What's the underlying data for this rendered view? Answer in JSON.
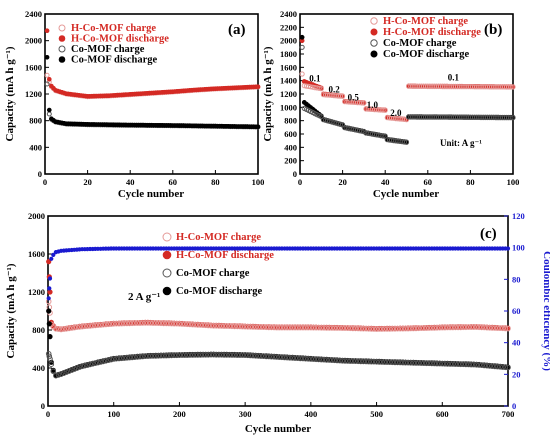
{
  "colors": {
    "h_charge": "#e59a98",
    "h_discharge": "#d42a24",
    "co_charge": "#555555",
    "co_discharge": "#000000",
    "efficiency": "#1a1ad0",
    "axis_right": "#1a1ad0"
  },
  "chart_data": [
    {
      "panel": "(a)",
      "type": "scatter",
      "xlabel": "Cycle number",
      "ylabel": "Capacity (mA h g⁻¹)",
      "xlim": [
        0,
        100
      ],
      "ylim": [
        0,
        2400
      ],
      "xticks": [
        "0",
        "20",
        "40",
        "60",
        "80",
        "100"
      ],
      "yticks": [
        "0",
        "400",
        "800",
        "1200",
        "1600",
        "2000",
        "2400"
      ],
      "legend": [
        "H-Co-MOF charge",
        "H-Co-MOF discharge",
        "Co-MOF charge",
        "Co-MOF discharge"
      ],
      "legend_position": "top-left",
      "series": [
        {
          "name": "H-Co-MOF charge",
          "x": [
            1,
            2,
            3,
            5,
            10,
            20,
            30,
            40,
            50,
            60,
            70,
            80,
            90,
            100
          ],
          "y": [
            1480,
            1380,
            1310,
            1250,
            1200,
            1160,
            1170,
            1190,
            1210,
            1230,
            1255,
            1275,
            1290,
            1305
          ]
        },
        {
          "name": "H-Co-MOF discharge",
          "x": [
            1,
            2,
            3,
            5,
            10,
            20,
            30,
            40,
            50,
            60,
            70,
            80,
            90,
            100
          ],
          "y": [
            2150,
            1420,
            1320,
            1255,
            1205,
            1165,
            1175,
            1195,
            1215,
            1235,
            1260,
            1280,
            1295,
            1310
          ]
        },
        {
          "name": "Co-MOF charge",
          "x": [
            1,
            2,
            3,
            5,
            10,
            20,
            40,
            60,
            80,
            100
          ],
          "y": [
            1350,
            900,
            820,
            780,
            750,
            740,
            730,
            725,
            715,
            705
          ]
        },
        {
          "name": "Co-MOF discharge",
          "x": [
            1,
            2,
            3,
            5,
            10,
            20,
            40,
            60,
            80,
            100
          ],
          "y": [
            1750,
            960,
            830,
            785,
            755,
            745,
            735,
            728,
            718,
            708
          ]
        }
      ]
    },
    {
      "panel": "(b)",
      "type": "scatter",
      "xlabel": "Cycle number",
      "ylabel": "Capacity (mA h g⁻¹)",
      "xlim": [
        0,
        100
      ],
      "ylim": [
        0,
        2400
      ],
      "xticks": [
        "0",
        "20",
        "40",
        "60",
        "80",
        "100"
      ],
      "yticks": [
        "0",
        "200",
        "400",
        "600",
        "800",
        "1000",
        "1200",
        "1400",
        "1600",
        "1800",
        "2000",
        "2200",
        "2400"
      ],
      "legend": [
        "H-Co-MOF charge",
        "H-Co-MOF discharge",
        "Co-MOF charge",
        "Co-MOF discharge"
      ],
      "legend_position": "top-right",
      "rate_labels": [
        "0.1",
        "0.2",
        "0.5",
        "1.0",
        "2.0",
        "0.1"
      ],
      "unit_label": "Unit: A g⁻¹",
      "rate_segments_cycles": [
        [
          1,
          10
        ],
        [
          11,
          20
        ],
        [
          21,
          30
        ],
        [
          31,
          40
        ],
        [
          41,
          50
        ],
        [
          51,
          100
        ]
      ],
      "series": [
        {
          "name": "H-Co-MOF discharge",
          "segments": [
            [
              1400,
              1290
            ],
            [
              1200,
              1170
            ],
            [
              1090,
              1070
            ],
            [
              980,
              960
            ],
            [
              850,
              820
            ],
            [
              1320,
              1310
            ]
          ],
          "first": 2000
        },
        {
          "name": "H-Co-MOF charge",
          "segments": [
            [
              1330,
              1280
            ],
            [
              1190,
              1165
            ],
            [
              1085,
              1065
            ],
            [
              975,
              955
            ],
            [
              845,
              815
            ],
            [
              1315,
              1305
            ]
          ],
          "first": 1500
        },
        {
          "name": "Co-MOF discharge",
          "segments": [
            [
              1100,
              870
            ],
            [
              820,
              740
            ],
            [
              700,
              640
            ],
            [
              620,
              570
            ],
            [
              520,
              480
            ],
            [
              860,
              850
            ]
          ],
          "first": 2050
        },
        {
          "name": "Co-MOF charge",
          "segments": [
            [
              1000,
              860
            ],
            [
              815,
              735
            ],
            [
              695,
              635
            ],
            [
              615,
              565
            ],
            [
              515,
              475
            ],
            [
              855,
              845
            ]
          ],
          "first": 1900
        }
      ]
    },
    {
      "panel": "(c)",
      "type": "scatter",
      "xlabel": "Cycle number",
      "ylabel": "Capacity (mA h g⁻¹)",
      "y2label": "Coulombic efficiency (%)",
      "xlim": [
        0,
        700
      ],
      "ylim": [
        0,
        2000
      ],
      "y2lim": [
        0,
        120
      ],
      "xticks": [
        "0",
        "100",
        "200",
        "300",
        "400",
        "500",
        "600",
        "700"
      ],
      "yticks": [
        "0",
        "400",
        "800",
        "1200",
        "1600",
        "2000"
      ],
      "y2ticks": [
        "0",
        "20",
        "40",
        "60",
        "80",
        "100",
        "120"
      ],
      "legend": [
        "H-Co-MOF charge",
        "H-Co-MOF discharge",
        "Co-MOF charge",
        "Co-MOF discharge"
      ],
      "legend_position": "center",
      "current_label": "2 A g⁻¹",
      "series": [
        {
          "name": "H-Co-MOF discharge",
          "x": [
            1,
            5,
            10,
            20,
            50,
            100,
            150,
            200,
            250,
            300,
            350,
            400,
            450,
            500,
            550,
            600,
            650,
            700
          ],
          "y": [
            1520,
            880,
            820,
            810,
            840,
            870,
            880,
            870,
            850,
            840,
            830,
            830,
            825,
            815,
            820,
            830,
            835,
            820
          ]
        },
        {
          "name": "H-Co-MOF charge",
          "x": [
            1,
            5,
            10,
            20,
            50,
            100,
            150,
            200,
            250,
            300,
            350,
            400,
            450,
            500,
            550,
            600,
            650,
            700
          ],
          "y": [
            1100,
            860,
            815,
            805,
            835,
            865,
            875,
            865,
            845,
            835,
            825,
            825,
            820,
            810,
            815,
            825,
            830,
            815
          ]
        },
        {
          "name": "Co-MOF discharge",
          "x": [
            1,
            5,
            10,
            20,
            50,
            100,
            150,
            200,
            250,
            300,
            350,
            400,
            450,
            500,
            550,
            600,
            650,
            700
          ],
          "y": [
            1000,
            460,
            320,
            340,
            420,
            500,
            530,
            540,
            545,
            540,
            520,
            500,
            480,
            470,
            460,
            450,
            440,
            410
          ]
        },
        {
          "name": "Co-MOF charge",
          "x": [
            1,
            5,
            10,
            20,
            50,
            100,
            150,
            200,
            250,
            300,
            350,
            400,
            450,
            500,
            550,
            600,
            650,
            700
          ],
          "y": [
            550,
            440,
            315,
            335,
            415,
            495,
            525,
            535,
            540,
            535,
            515,
            495,
            475,
            465,
            455,
            445,
            435,
            405
          ]
        },
        {
          "name": "Coulombic efficiency",
          "axis": "right",
          "x": [
            1,
            5,
            10,
            20,
            50,
            100,
            200,
            300,
            400,
            500,
            600,
            700
          ],
          "y": [
            68,
            93,
            97,
            98,
            99,
            99.5,
            99.5,
            99.5,
            99.5,
            99.5,
            99.5,
            99.5
          ]
        }
      ]
    }
  ]
}
